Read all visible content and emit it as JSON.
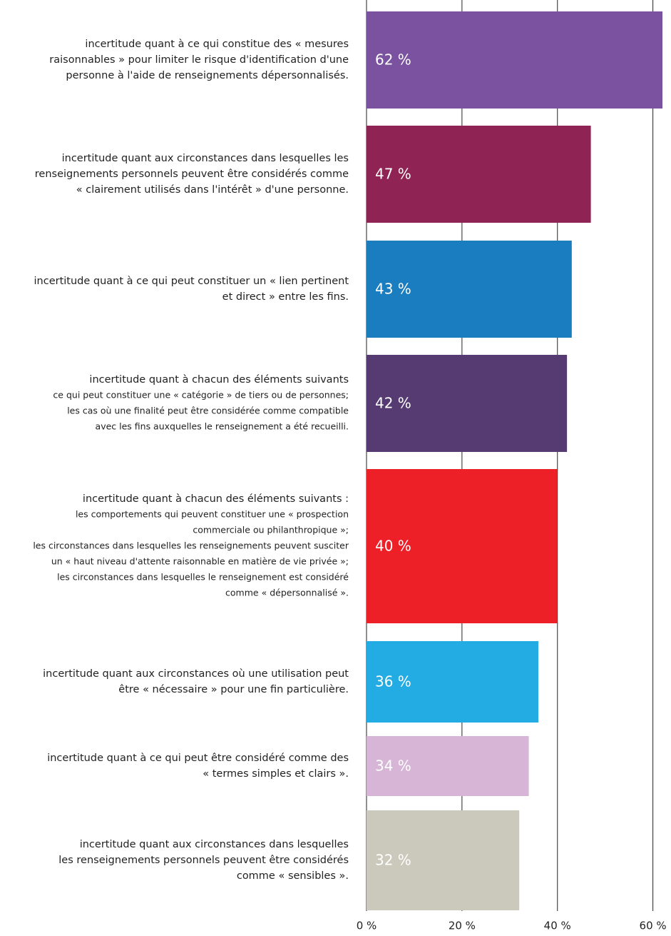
{
  "chart_data": {
    "type": "barh",
    "categories": [
      [
        "incertitude quant à ce qui constitue des « mesures",
        "raisonnables » pour limiter le risque d'identification d'une",
        "personne à l'aide de renseignements dépersonnalisés."
      ],
      [
        "incertitude quant aux circonstances dans lesquelles les",
        "renseignements personnels peuvent être considérés comme",
        "« clairement utilisés dans l'intérêt » d'une personne."
      ],
      [
        "incertitude quant à ce qui peut constituer un « lien pertinent",
        "et direct » entre les fins."
      ],
      [
        "incertitude quant à chacun des éléments suivants",
        "ce qui peut constituer une « catégorie » de tiers ou de personnes;",
        "les cas où une finalité peut être considérée comme compatible",
        "avec les fins auxquelles le renseignement a été recueilli."
      ],
      [
        "incertitude quant à chacun des éléments suivants :",
        "les comportements qui peuvent constituer une « prospection",
        "commerciale ou philanthropique »;",
        "les circonstances dans lesquelles les renseignements peuvent susciter",
        "un « haut niveau d'attente raisonnable en matière de vie privée »;",
        "les circonstances dans lesquelles le renseignement est considéré",
        "comme « dépersonnalisé »."
      ],
      [
        "incertitude quant aux circonstances où une utilisation peut",
        "être « nécessaire » pour une fin particulière."
      ],
      [
        "incertitude quant à ce qui peut être considéré comme des",
        "« termes simples et clairs »."
      ],
      [
        "incertitude quant aux circonstances dans lesquelles",
        "les renseignements personnels peuvent être considérés",
        "comme « sensibles »."
      ]
    ],
    "values": [
      62,
      47,
      43,
      42,
      40,
      36,
      34,
      32
    ],
    "value_labels": [
      "62 %",
      "47 %",
      "43 %",
      "42 %",
      "40 %",
      "36 %",
      "34 %",
      "32 %"
    ],
    "colors": [
      "#7a529f",
      "#8f2354",
      "#1a7dbf",
      "#553b72",
      "#ed1f27",
      "#22ace3",
      "#d6b5d7",
      "#cbc9bb"
    ],
    "xlim": [
      0,
      62
    ],
    "xticks": [
      {
        "value": 0,
        "label": "0 %"
      },
      {
        "value": 20,
        "label": "20 %"
      },
      {
        "value": 40,
        "label": "40 %"
      },
      {
        "value": 60,
        "label": "60 %"
      }
    ],
    "grid": true
  }
}
